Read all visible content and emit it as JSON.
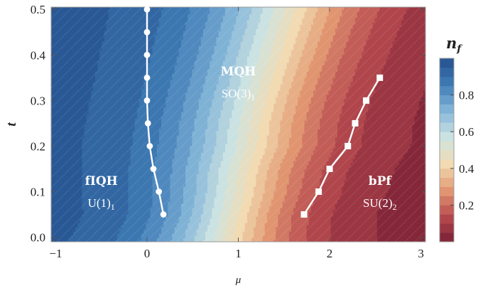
{
  "chart_data": {
    "type": "heatmap",
    "title": "",
    "xlabel": "μ",
    "ylabel": "t",
    "xlim": [
      -1.05,
      3.05
    ],
    "ylim": [
      -0.01,
      0.505
    ],
    "x_ticks": [
      -1,
      0,
      1,
      2,
      3
    ],
    "x_tick_labels": [
      "−1",
      "0",
      "1",
      "2",
      "3"
    ],
    "y_ticks": [
      0.0,
      0.1,
      0.2,
      0.3,
      0.4,
      0.5
    ],
    "y_tick_labels": [
      "0.0",
      "0.1",
      "0.2",
      "0.3",
      "0.4",
      "0.5"
    ],
    "colorbar": {
      "label": "n_f",
      "label_main": "n",
      "label_sub": "f",
      "range": [
        0.0,
        1.0
      ],
      "ticks": [
        0.2,
        0.4,
        0.6,
        0.8
      ],
      "tick_labels": [
        "0.2",
        "0.4",
        "0.6",
        "0.8"
      ],
      "colormap": [
        "#7a1f35",
        "#b84b4f",
        "#e39b73",
        "#f2dcb4",
        "#cde3e2",
        "#84b6d8",
        "#3f7cb6",
        "#24508e"
      ],
      "contour_levels": 20
    },
    "field_description_values": {
      "nf_low_mu_side": 0.98,
      "nf_high_mu_side": 0.02
    },
    "boundaries": [
      {
        "name": "fIQH–MQH",
        "marker": "circle",
        "color": "#ffffff",
        "points": [
          {
            "mu": 0.18,
            "t": 0.05
          },
          {
            "mu": 0.13,
            "t": 0.1
          },
          {
            "mu": 0.07,
            "t": 0.15
          },
          {
            "mu": 0.03,
            "t": 0.2
          },
          {
            "mu": 0.01,
            "t": 0.25
          },
          {
            "mu": 0.0,
            "t": 0.3
          },
          {
            "mu": 0.0,
            "t": 0.35
          },
          {
            "mu": 0.0,
            "t": 0.4
          },
          {
            "mu": 0.0,
            "t": 0.45
          },
          {
            "mu": 0.0,
            "t": 0.5
          }
        ]
      },
      {
        "name": "MQH–bPf",
        "marker": "square",
        "color": "#ffffff",
        "points": [
          {
            "mu": 1.72,
            "t": 0.05
          },
          {
            "mu": 1.88,
            "t": 0.1
          },
          {
            "mu": 2.0,
            "t": 0.15
          },
          {
            "mu": 2.2,
            "t": 0.2
          },
          {
            "mu": 2.28,
            "t": 0.25
          },
          {
            "mu": 2.4,
            "t": 0.3
          },
          {
            "mu": 2.55,
            "t": 0.35
          }
        ]
      }
    ],
    "phase_labels": [
      {
        "name": "fIQH",
        "sub_main": "U(1)",
        "sub_index": "1",
        "mu": -0.5,
        "t": 0.115
      },
      {
        "name": "MQH",
        "sub_main": "SO(3)",
        "sub_index": "1",
        "mu": 1.0,
        "t": 0.355
      },
      {
        "name": "bPf",
        "sub_main": "SU(2)",
        "sub_index": "2",
        "mu": 2.55,
        "t": 0.115
      }
    ]
  }
}
